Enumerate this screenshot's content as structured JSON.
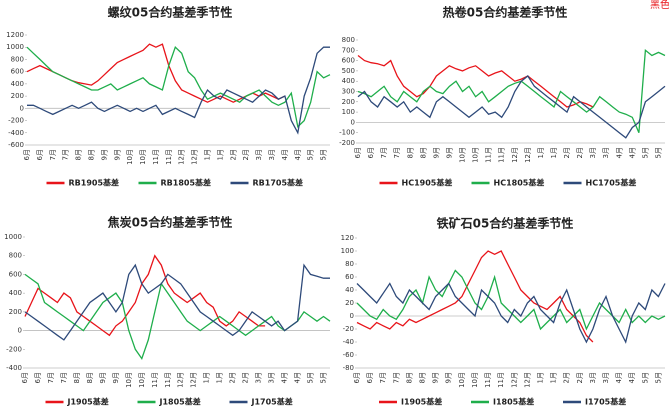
{
  "corner_label": "黑色",
  "chart_data": [
    {
      "type": "line",
      "title": "螺纹05合约基差季节性",
      "categories": [
        "6月",
        null,
        "6月",
        null,
        "7月",
        null,
        "7月",
        null,
        "8月",
        null,
        "8月",
        null,
        "9月",
        null,
        "9月",
        null,
        "10月",
        null,
        "10月",
        null,
        "11月",
        null,
        "11月",
        null,
        "12月",
        null,
        "12月",
        null,
        "1月",
        null,
        "1月",
        null,
        "2月",
        null,
        "2月",
        null,
        "3月",
        null,
        "3月",
        null,
        "4月",
        null,
        "4月",
        null,
        "5月",
        null,
        "5月",
        null
      ],
      "ylim": [
        -600,
        1200
      ],
      "yticks": [
        -600,
        -400,
        -200,
        0,
        200,
        400,
        600,
        800,
        1000,
        1200
      ],
      "series": [
        {
          "name": "RB1905基差",
          "color": "#e8141a",
          "values": [
            600,
            650,
            700,
            650,
            600,
            550,
            500,
            450,
            420,
            400,
            380,
            450,
            550,
            650,
            750,
            800,
            850,
            900,
            950,
            1050,
            1000,
            1050,
            700,
            450,
            300,
            250,
            200,
            150,
            100,
            150,
            200,
            150,
            100,
            150,
            200,
            250,
            200,
            250,
            200,
            150,
            200,
            null,
            null,
            null,
            null,
            null,
            null,
            null
          ]
        },
        {
          "name": "RB1805基差",
          "color": "#1fae4b",
          "values": [
            1000,
            900,
            800,
            700,
            600,
            550,
            500,
            450,
            400,
            350,
            300,
            300,
            350,
            400,
            300,
            350,
            400,
            450,
            500,
            400,
            350,
            300,
            700,
            1000,
            900,
            600,
            500,
            300,
            150,
            200,
            250,
            200,
            150,
            100,
            200,
            250,
            300,
            200,
            100,
            50,
            100,
            250,
            -300,
            -200,
            100,
            600,
            500,
            550
          ]
        },
        {
          "name": "RB1705基差",
          "color": "#2e4a7a",
          "values": [
            50,
            50,
            0,
            -50,
            -100,
            -50,
            0,
            50,
            0,
            50,
            100,
            0,
            -50,
            0,
            50,
            0,
            -50,
            0,
            -50,
            0,
            50,
            -100,
            -50,
            0,
            -50,
            -100,
            -150,
            100,
            300,
            200,
            150,
            300,
            250,
            200,
            150,
            100,
            200,
            300,
            250,
            150,
            200,
            -200,
            -400,
            200,
            500,
            900,
            1000,
            1000
          ]
        }
      ]
    },
    {
      "type": "line",
      "title": "热卷05合约基差季节性",
      "categories": [
        "6月",
        null,
        "6月",
        null,
        "7月",
        null,
        "7月",
        null,
        "8月",
        null,
        "8月",
        null,
        "9月",
        null,
        "9月",
        null,
        "10月",
        null,
        "10月",
        null,
        "11月",
        null,
        "11月",
        null,
        "12月",
        null,
        "12月",
        null,
        "1月",
        null,
        "1月",
        null,
        "2月",
        null,
        "2月",
        null,
        "3月",
        null,
        "3月",
        null,
        "4月",
        null,
        "4月",
        null,
        "5月",
        null,
        "5月",
        null
      ],
      "ylim": [
        -200,
        800
      ],
      "yticks": [
        -200,
        -100,
        0,
        100,
        200,
        300,
        400,
        500,
        600,
        700,
        800
      ],
      "series": [
        {
          "name": "HC1905基差",
          "color": "#e8141a",
          "values": [
            650,
            600,
            580,
            570,
            550,
            600,
            450,
            350,
            300,
            250,
            280,
            350,
            450,
            500,
            550,
            520,
            500,
            530,
            550,
            500,
            450,
            480,
            500,
            450,
            400,
            420,
            450,
            400,
            350,
            300,
            250,
            200,
            150,
            170,
            200,
            180,
            150,
            null,
            null,
            null,
            null,
            null,
            null,
            null,
            null,
            null,
            null,
            null
          ]
        },
        {
          "name": "HC1805基差",
          "color": "#1fae4b",
          "values": [
            300,
            280,
            250,
            300,
            350,
            250,
            200,
            300,
            250,
            200,
            300,
            350,
            300,
            280,
            350,
            400,
            300,
            350,
            250,
            300,
            200,
            250,
            300,
            350,
            380,
            400,
            350,
            300,
            250,
            200,
            150,
            300,
            250,
            200,
            150,
            100,
            150,
            250,
            200,
            150,
            100,
            80,
            50,
            -100,
            700,
            650,
            680,
            650
          ]
        },
        {
          "name": "HC1705基差",
          "color": "#2e4a7a",
          "values": [
            250,
            300,
            200,
            150,
            250,
            200,
            150,
            200,
            100,
            150,
            100,
            50,
            200,
            250,
            200,
            150,
            100,
            50,
            100,
            150,
            80,
            100,
            50,
            150,
            300,
            400,
            450,
            350,
            300,
            250,
            200,
            150,
            100,
            250,
            200,
            150,
            100,
            50,
            0,
            -50,
            -100,
            -150,
            -50,
            0,
            200,
            250,
            300,
            350
          ]
        }
      ]
    },
    {
      "type": "line",
      "title": "焦炭05合约基差季节性",
      "categories": [
        "6月",
        null,
        "6月",
        null,
        "7月",
        null,
        "7月",
        null,
        "8月",
        null,
        "8月",
        null,
        "9月",
        null,
        "9月",
        null,
        "10月",
        null,
        "10月",
        null,
        "11月",
        null,
        "11月",
        null,
        "12月",
        null,
        "12月",
        null,
        "1月",
        null,
        "1月",
        null,
        "2月",
        null,
        "2月",
        null,
        "3月",
        null,
        "3月",
        null,
        "4月",
        null,
        "4月",
        null,
        "5月",
        null,
        "5月",
        null
      ],
      "ylim": [
        -400,
        1000
      ],
      "yticks": [
        -400,
        -200,
        0,
        200,
        400,
        600,
        800,
        1000
      ],
      "series": [
        {
          "name": "J1905基差",
          "color": "#e8141a",
          "values": [
            150,
            300,
            450,
            400,
            350,
            300,
            400,
            350,
            200,
            150,
            100,
            50,
            0,
            -50,
            50,
            100,
            200,
            300,
            500,
            600,
            800,
            700,
            500,
            400,
            350,
            300,
            350,
            400,
            300,
            250,
            100,
            50,
            100,
            200,
            150,
            100,
            50,
            50,
            null,
            null,
            null,
            null,
            null,
            null,
            null,
            null,
            null,
            null
          ]
        },
        {
          "name": "J1805基差",
          "color": "#1fae4b",
          "values": [
            600,
            550,
            500,
            300,
            250,
            200,
            150,
            100,
            50,
            0,
            100,
            200,
            300,
            350,
            400,
            300,
            0,
            -200,
            -300,
            -100,
            200,
            500,
            400,
            300,
            200,
            100,
            50,
            0,
            50,
            100,
            150,
            100,
            50,
            0,
            -50,
            0,
            50,
            100,
            150,
            50,
            0,
            50,
            100,
            200,
            150,
            100,
            150,
            100
          ]
        },
        {
          "name": "J1705基差",
          "color": "#2e4a7a",
          "values": [
            200,
            150,
            100,
            50,
            0,
            -50,
            -100,
            0,
            100,
            200,
            300,
            350,
            400,
            300,
            200,
            300,
            600,
            700,
            500,
            400,
            450,
            500,
            600,
            550,
            500,
            400,
            300,
            200,
            150,
            100,
            50,
            0,
            -50,
            0,
            100,
            200,
            150,
            100,
            50,
            100,
            0,
            50,
            100,
            700,
            600,
            580,
            560,
            560
          ]
        }
      ]
    },
    {
      "type": "line",
      "title": "铁矿石05合约基差季节性",
      "categories": [
        "6月",
        null,
        "6月",
        null,
        "7月",
        null,
        "7月",
        null,
        "8月",
        null,
        "8月",
        null,
        "9月",
        null,
        "9月",
        null,
        "10月",
        null,
        "10月",
        null,
        "11月",
        null,
        "11月",
        null,
        "12月",
        null,
        "12月",
        null,
        "1月",
        null,
        "1月",
        null,
        "2月",
        null,
        "2月",
        null,
        "3月",
        null,
        "3月",
        null,
        "4月",
        null,
        "4月",
        null,
        "5月",
        null,
        "5月",
        null
      ],
      "ylim": [
        -80,
        120
      ],
      "yticks": [
        -80,
        -60,
        -40,
        -20,
        0,
        20,
        40,
        60,
        80,
        100,
        120
      ],
      "series": [
        {
          "name": "I1905基差",
          "color": "#e8141a",
          "values": [
            -10,
            -15,
            -20,
            -10,
            -15,
            -20,
            -10,
            -15,
            -5,
            -10,
            -5,
            0,
            5,
            10,
            15,
            20,
            30,
            50,
            70,
            90,
            100,
            95,
            100,
            80,
            60,
            40,
            30,
            20,
            15,
            10,
            20,
            30,
            10,
            0,
            -10,
            -30,
            -40,
            null,
            null,
            null,
            null,
            null,
            null,
            null,
            null,
            null,
            null,
            null
          ]
        },
        {
          "name": "I1805基差",
          "color": "#1fae4b",
          "values": [
            20,
            10,
            0,
            -5,
            10,
            0,
            -5,
            10,
            30,
            40,
            20,
            60,
            40,
            30,
            50,
            70,
            60,
            40,
            20,
            10,
            30,
            60,
            20,
            10,
            0,
            -10,
            0,
            10,
            -20,
            -10,
            0,
            10,
            -10,
            0,
            10,
            -20,
            0,
            20,
            10,
            0,
            -10,
            10,
            -10,
            0,
            -10,
            0,
            -5,
            0
          ]
        },
        {
          "name": "I1705基差",
          "color": "#2e4a7a",
          "values": [
            50,
            40,
            30,
            20,
            35,
            50,
            30,
            20,
            40,
            30,
            20,
            10,
            30,
            40,
            50,
            30,
            20,
            10,
            0,
            40,
            30,
            20,
            0,
            -10,
            10,
            0,
            20,
            30,
            10,
            0,
            -10,
            20,
            40,
            10,
            -20,
            -40,
            -20,
            10,
            30,
            0,
            -20,
            -40,
            0,
            20,
            10,
            40,
            30,
            50
          ]
        }
      ]
    }
  ]
}
